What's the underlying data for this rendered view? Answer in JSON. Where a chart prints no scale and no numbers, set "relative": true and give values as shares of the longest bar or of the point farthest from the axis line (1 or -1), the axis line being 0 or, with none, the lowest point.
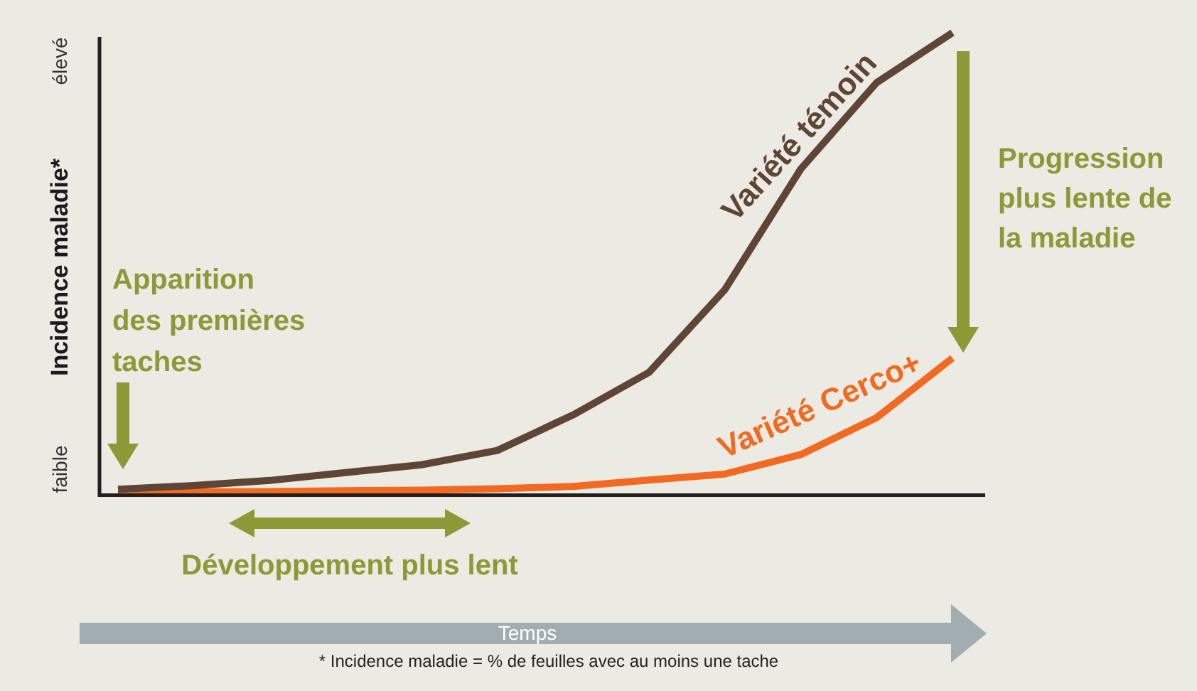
{
  "chart_data": {
    "type": "line",
    "ylabel": "Incidence maladie*",
    "relative": true,
    "categories": [
      null,
      null,
      null,
      null,
      null,
      null,
      null,
      null,
      null,
      null,
      null,
      null
    ],
    "series": [
      {
        "name": "Variété témoin",
        "color": "#5f4536",
        "values": [
          0.012,
          0.02,
          0.031,
          0.048,
          0.065,
          0.096,
          0.173,
          0.265,
          0.444,
          0.705,
          0.892,
          1
        ]
      },
      {
        "name": "Variété Cerco+",
        "color": "#f26a21",
        "values": [
          0.006,
          0.006,
          0.007,
          0.009,
          0.01,
          0.013,
          0.018,
          0.032,
          0.045,
          0.087,
          0.167,
          0.296
        ]
      }
    ],
    "legend": false,
    "marker": "none",
    "line_style": "solid",
    "annotations": [
      "Apparition des premières taches",
      "Développement plus lent",
      "Progression plus lente de la maladie",
      "faible",
      "élevé",
      "Temps",
      "* Incidence maladie = % de feuilles avec au moins une tache"
    ]
  }
}
